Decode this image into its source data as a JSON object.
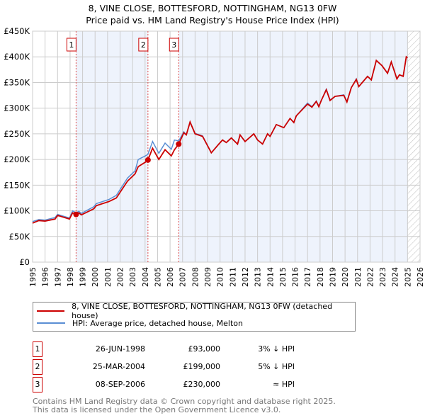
{
  "title_line1": "8, VINE CLOSE, BOTTESFORD, NOTTINGHAM, NG13 0FW",
  "title_line2": "Price paid vs. HM Land Registry's House Price Index (HPI)",
  "chart_data": {
    "type": "line",
    "title": "8, VINE CLOSE, BOTTESFORD, NOTTINGHAM, NG13 0FW — Price paid vs. HM Land Registry's House Price Index (HPI)",
    "xlim": [
      1995,
      2026
    ],
    "ylim": [
      0,
      450000
    ],
    "yticks": [
      {
        "v": 0,
        "label": "£0"
      },
      {
        "v": 50000,
        "label": "£50K"
      },
      {
        "v": 100000,
        "label": "£100K"
      },
      {
        "v": 150000,
        "label": "£150K"
      },
      {
        "v": 200000,
        "label": "£200K"
      },
      {
        "v": 250000,
        "label": "£250K"
      },
      {
        "v": 300000,
        "label": "£300K"
      },
      {
        "v": 350000,
        "label": "£350K"
      },
      {
        "v": 400000,
        "label": "£400K"
      },
      {
        "v": 450000,
        "label": "£450K"
      }
    ],
    "xticks": [
      "1995",
      "1996",
      "1997",
      "1998",
      "1999",
      "2000",
      "2001",
      "2002",
      "2003",
      "2004",
      "2005",
      "2006",
      "2007",
      "2008",
      "2009",
      "2010",
      "2011",
      "2012",
      "2013",
      "2014",
      "2015",
      "2016",
      "2017",
      "2018",
      "2019",
      "2020",
      "2021",
      "2022",
      "2023",
      "2024",
      "2025",
      "2026"
    ],
    "x": [
      1995.0,
      1995.5,
      1996.0,
      1996.8,
      1997.0,
      1997.95,
      1998.2,
      1998.48,
      1998.7,
      1998.9,
      1999.9,
      2000.1,
      2001.1,
      2001.7,
      2002.6,
      2003.2,
      2003.45,
      2004.1,
      2004.23,
      2004.6,
      2005.1,
      2005.6,
      2006.1,
      2006.35,
      2006.69,
      2007.1,
      2007.3,
      2007.6,
      2008.0,
      2008.6,
      2009.3,
      2009.9,
      2010.2,
      2010.5,
      2010.9,
      2011.4,
      2011.6,
      2012.0,
      2012.7,
      2013.0,
      2013.4,
      2013.8,
      2014.0,
      2014.5,
      2015.1,
      2015.6,
      2015.9,
      2016.1,
      2017.0,
      2017.35,
      2017.7,
      2017.9,
      2018.1,
      2018.5,
      2018.8,
      2019.2,
      2019.9,
      2020.15,
      2020.5,
      2020.9,
      2021.1,
      2021.45,
      2021.8,
      2022.1,
      2022.5,
      2022.95,
      2023.4,
      2023.7,
      2024.15,
      2024.35,
      2024.65,
      2024.9,
      2025.0
    ],
    "series": [
      {
        "name": "8, VINE CLOSE, BOTTESFORD, NOTTINGHAM, NG13 0FW (detached house)",
        "color": "#cc0000",
        "values": [
          76,
          81,
          80,
          84,
          91,
          84,
          96,
          93,
          96,
          92,
          104,
          110,
          118,
          125,
          158,
          172,
          186,
          196,
          199,
          222,
          200,
          219,
          207,
          219,
          230,
          252,
          248,
          273,
          250,
          245,
          213,
          230,
          238,
          233,
          242,
          230,
          248,
          235,
          250,
          238,
          230,
          250,
          245,
          268,
          262,
          280,
          272,
          285,
          308,
          302,
          313,
          303,
          315,
          336,
          315,
          323,
          325,
          312,
          340,
          356,
          342,
          352,
          362,
          355,
          393,
          383,
          368,
          390,
          357,
          365,
          362,
          400,
          398
        ]
      },
      {
        "name": "HPI: Average price, detached house, Melton",
        "color": "#5b8fd4",
        "values": [
          79,
          83,
          82,
          87,
          93,
          86,
          100,
          96,
          99,
          95,
          108,
          114,
          122,
          130,
          164,
          178,
          200,
          208,
          210,
          235,
          212,
          232,
          220,
          238,
          236,
          254,
          248,
          273,
          251,
          246,
          213,
          230,
          238,
          233,
          242,
          230,
          248,
          235,
          250,
          238,
          230,
          250,
          245,
          268,
          262,
          280,
          272,
          285,
          310,
          303,
          314,
          304,
          315,
          337,
          316,
          323,
          326,
          313,
          340,
          357,
          342,
          352,
          362,
          355,
          393,
          383,
          368,
          390,
          357,
          365,
          362,
          400,
          398
        ]
      }
    ],
    "value_unit": "£ thousands",
    "sales": [
      {
        "id": "1",
        "x": 1998.48,
        "value": 93
      },
      {
        "id": "2",
        "x": 2004.23,
        "value": 199
      },
      {
        "id": "3",
        "x": 2006.69,
        "value": 230
      }
    ],
    "legend_placement": "below"
  },
  "legend": {
    "property": "8, VINE CLOSE, BOTTESFORD, NOTTINGHAM, NG13 0FW (detached house)",
    "hpi": "HPI: Average price, detached house, Melton"
  },
  "sales_table": [
    {
      "num": "1",
      "date": "26-JUN-1998",
      "price": "£93,000",
      "hpi": "3% ↓ HPI"
    },
    {
      "num": "2",
      "date": "25-MAR-2004",
      "price": "£199,000",
      "hpi": "5% ↓ HPI"
    },
    {
      "num": "3",
      "date": "08-SEP-2006",
      "price": "£230,000",
      "hpi": "≈ HPI"
    }
  ],
  "footer_line1": "Contains HM Land Registry data © Crown copyright and database right 2025.",
  "footer_line2": "This data is licensed under the Open Government Licence v3.0."
}
